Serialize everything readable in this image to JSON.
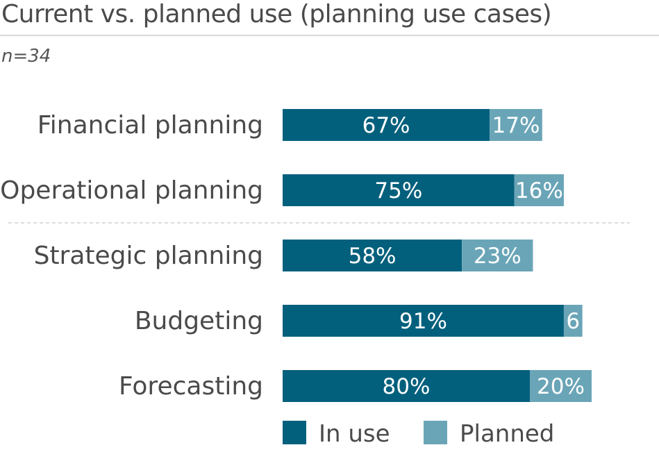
{
  "title": "Current vs. planned use (planning use cases)",
  "subtitle": "n=34",
  "colors": {
    "in_use": "#03607d",
    "planned": "#6aa5b7",
    "divider": "#d0d0d0"
  },
  "chart_data": {
    "type": "bar",
    "orientation": "horizontal",
    "stacked": true,
    "categories": [
      "Financial planning",
      "Operational planning",
      "Strategic planning",
      "Budgeting",
      "Forecasting"
    ],
    "series": [
      {
        "name": "In use",
        "values": [
          67,
          75,
          58,
          91,
          80
        ],
        "labels": [
          "67%",
          "75%",
          "58%",
          "91%",
          "80%"
        ]
      },
      {
        "name": "Planned",
        "values": [
          17,
          16,
          23,
          6,
          20
        ],
        "labels": [
          "17%",
          "16%",
          "23%",
          "6",
          "20%"
        ]
      }
    ],
    "xlim": [
      0,
      100
    ],
    "grid": false,
    "legend": "bottom",
    "divider_after_category": 1
  }
}
